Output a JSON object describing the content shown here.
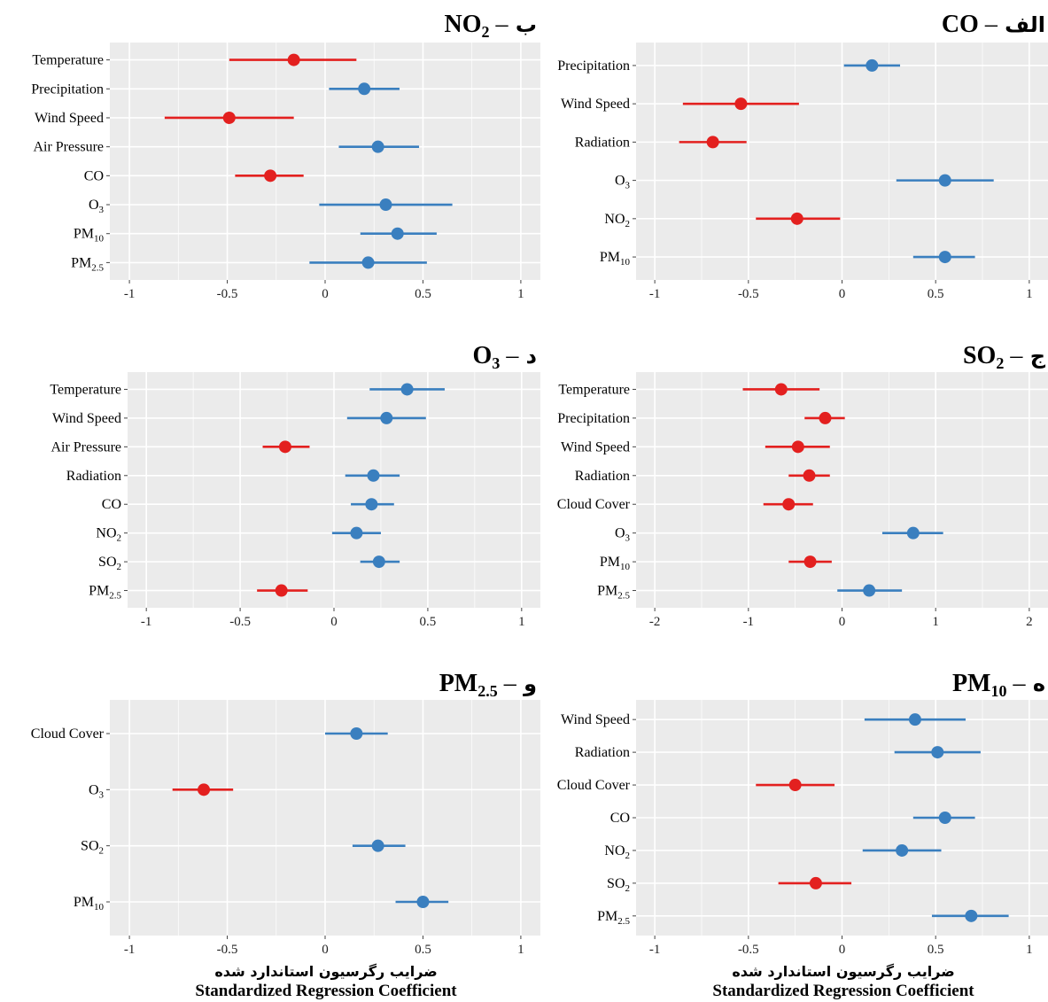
{
  "figure": {
    "xlabel_fa": "ضرایب رگرسیون استاندارد شده",
    "xlabel_en": "Standardized Regression Coefficient"
  },
  "colors": {
    "positive": "#3a7fbf",
    "negative": "#e3201f",
    "panel_bg": "#ebebeb",
    "grid": "#ffffff"
  },
  "chart_data": [
    {
      "id": "alef",
      "type": "scatter",
      "subtype": "coefficient-interval",
      "title_letter": "الف",
      "title_dash": "–",
      "title_base": "CO",
      "title_sub": "",
      "xlim": [
        -1.1,
        1.1
      ],
      "xticks": [
        "-1",
        "-0.5",
        "0",
        "0.5",
        "1"
      ],
      "xtick_values": [
        -1,
        -0.5,
        0,
        0.5,
        1
      ],
      "points": [
        {
          "label": "Precipitation",
          "sub": "",
          "estimate": 0.16,
          "low": 0.01,
          "high": 0.31,
          "sign": "positive"
        },
        {
          "label": "Wind Speed",
          "sub": "",
          "estimate": -0.54,
          "low": -0.85,
          "high": -0.23,
          "sign": "negative"
        },
        {
          "label": "Radiation",
          "sub": "",
          "estimate": -0.69,
          "low": -0.87,
          "high": -0.51,
          "sign": "negative"
        },
        {
          "label": "O",
          "sub": "3",
          "estimate": 0.55,
          "low": 0.29,
          "high": 0.81,
          "sign": "positive"
        },
        {
          "label": "NO",
          "sub": "2",
          "estimate": -0.24,
          "low": -0.46,
          "high": -0.01,
          "sign": "negative"
        },
        {
          "label": "PM",
          "sub": "10",
          "estimate": 0.55,
          "low": 0.38,
          "high": 0.71,
          "sign": "positive"
        }
      ]
    },
    {
      "id": "be",
      "type": "scatter",
      "subtype": "coefficient-interval",
      "title_letter": "ب",
      "title_dash": "–",
      "title_base": "NO",
      "title_sub": "2",
      "xlim": [
        -1.1,
        1.1
      ],
      "xticks": [
        "-1",
        "-0.5",
        "0",
        "0.5",
        "1"
      ],
      "xtick_values": [
        -1,
        -0.5,
        0,
        0.5,
        1
      ],
      "points": [
        {
          "label": "Temperature",
          "sub": "",
          "estimate": -0.16,
          "low": -0.49,
          "high": 0.16,
          "sign": "negative"
        },
        {
          "label": "Precipitation",
          "sub": "",
          "estimate": 0.2,
          "low": 0.02,
          "high": 0.38,
          "sign": "positive"
        },
        {
          "label": "Wind Speed",
          "sub": "",
          "estimate": -0.49,
          "low": -0.82,
          "high": -0.16,
          "sign": "negative"
        },
        {
          "label": "Air Pressure",
          "sub": "",
          "estimate": 0.27,
          "low": 0.07,
          "high": 0.48,
          "sign": "positive"
        },
        {
          "label": "CO",
          "sub": "",
          "estimate": -0.28,
          "low": -0.46,
          "high": -0.11,
          "sign": "negative"
        },
        {
          "label": "O",
          "sub": "3",
          "estimate": 0.31,
          "low": -0.03,
          "high": 0.65,
          "sign": "positive"
        },
        {
          "label": "PM",
          "sub": "10",
          "estimate": 0.37,
          "low": 0.18,
          "high": 0.57,
          "sign": "positive"
        },
        {
          "label": "PM",
          "sub": "2.5",
          "estimate": 0.22,
          "low": -0.08,
          "high": 0.52,
          "sign": "positive"
        }
      ]
    },
    {
      "id": "jim",
      "type": "scatter",
      "subtype": "coefficient-interval",
      "title_letter": "ج",
      "title_dash": "–",
      "title_base": "SO",
      "title_sub": "2",
      "xlim": [
        -2.2,
        2.2
      ],
      "xticks": [
        "-2",
        "-1",
        "0",
        "1",
        "2"
      ],
      "xtick_values": [
        -2,
        -1,
        0,
        1,
        2
      ],
      "points": [
        {
          "label": "Temperature",
          "sub": "",
          "estimate": -0.65,
          "low": -1.06,
          "high": -0.24,
          "sign": "negative"
        },
        {
          "label": "Precipitation",
          "sub": "",
          "estimate": -0.18,
          "low": -0.4,
          "high": 0.03,
          "sign": "negative"
        },
        {
          "label": "Wind Speed",
          "sub": "",
          "estimate": -0.47,
          "low": -0.82,
          "high": -0.13,
          "sign": "negative"
        },
        {
          "label": "Radiation",
          "sub": "",
          "estimate": -0.35,
          "low": -0.57,
          "high": -0.13,
          "sign": "negative"
        },
        {
          "label": "Cloud Cover",
          "sub": "",
          "estimate": -0.57,
          "low": -0.84,
          "high": -0.31,
          "sign": "negative"
        },
        {
          "label": "O",
          "sub": "3",
          "estimate": 0.76,
          "low": 0.43,
          "high": 1.08,
          "sign": "positive"
        },
        {
          "label": "PM",
          "sub": "10",
          "estimate": -0.34,
          "low": -0.57,
          "high": -0.11,
          "sign": "negative"
        },
        {
          "label": "PM",
          "sub": "2.5",
          "estimate": 0.29,
          "low": -0.05,
          "high": 0.64,
          "sign": "positive"
        }
      ]
    },
    {
      "id": "dal",
      "type": "scatter",
      "subtype": "coefficient-interval",
      "title_letter": "د",
      "title_dash": "–",
      "title_base": "O",
      "title_sub": "3",
      "xlim": [
        -1.1,
        1.1
      ],
      "xticks": [
        "-1",
        "-0.5",
        "0",
        "0.5",
        "1"
      ],
      "xtick_values": [
        -1,
        -0.5,
        0,
        0.5,
        1
      ],
      "points": [
        {
          "label": "Temperature",
          "sub": "",
          "estimate": 0.39,
          "low": 0.19,
          "high": 0.59,
          "sign": "positive"
        },
        {
          "label": "Wind Speed",
          "sub": "",
          "estimate": 0.28,
          "low": 0.07,
          "high": 0.49,
          "sign": "positive"
        },
        {
          "label": "Air Pressure",
          "sub": "",
          "estimate": -0.26,
          "low": -0.38,
          "high": -0.13,
          "sign": "negative"
        },
        {
          "label": "Radiation",
          "sub": "",
          "estimate": 0.21,
          "low": 0.06,
          "high": 0.35,
          "sign": "positive"
        },
        {
          "label": "CO",
          "sub": "",
          "estimate": 0.2,
          "low": 0.09,
          "high": 0.32,
          "sign": "positive"
        },
        {
          "label": "NO",
          "sub": "2",
          "estimate": 0.12,
          "low": -0.01,
          "high": 0.25,
          "sign": "positive"
        },
        {
          "label": "SO",
          "sub": "2",
          "estimate": 0.24,
          "low": 0.14,
          "high": 0.35,
          "sign": "positive"
        },
        {
          "label": "PM",
          "sub": "2.5",
          "estimate": -0.28,
          "low": -0.41,
          "high": -0.14,
          "sign": "negative"
        }
      ]
    },
    {
      "id": "he",
      "type": "scatter",
      "subtype": "coefficient-interval",
      "title_letter": "ه",
      "title_dash": "–",
      "title_base": "PM",
      "title_sub": "10",
      "xlim": [
        -1.1,
        1.1
      ],
      "xticks": [
        "-1",
        "-0.5",
        "0",
        "0.5",
        "1"
      ],
      "xtick_values": [
        -1,
        -0.5,
        0,
        0.5,
        1
      ],
      "points": [
        {
          "label": "Wind Speed",
          "sub": "",
          "estimate": 0.39,
          "low": 0.12,
          "high": 0.66,
          "sign": "positive"
        },
        {
          "label": "Radiation",
          "sub": "",
          "estimate": 0.51,
          "low": 0.28,
          "high": 0.74,
          "sign": "positive"
        },
        {
          "label": "Cloud Cover",
          "sub": "",
          "estimate": -0.25,
          "low": -0.46,
          "high": -0.04,
          "sign": "negative"
        },
        {
          "label": "CO",
          "sub": "",
          "estimate": 0.55,
          "low": 0.38,
          "high": 0.71,
          "sign": "positive"
        },
        {
          "label": "NO",
          "sub": "2",
          "estimate": 0.32,
          "low": 0.11,
          "high": 0.53,
          "sign": "positive"
        },
        {
          "label": "SO",
          "sub": "2",
          "estimate": -0.14,
          "low": -0.34,
          "high": 0.05,
          "sign": "negative"
        },
        {
          "label": "PM",
          "sub": "2.5",
          "estimate": 0.69,
          "low": 0.48,
          "high": 0.89,
          "sign": "positive"
        }
      ]
    },
    {
      "id": "vav",
      "type": "scatter",
      "subtype": "coefficient-interval",
      "title_letter": "و",
      "title_dash": "–",
      "title_base": "PM",
      "title_sub": "2.5",
      "xlim": [
        -1.1,
        1.1
      ],
      "xticks": [
        "-1",
        "-0.5",
        "0",
        "0.5",
        "1"
      ],
      "xtick_values": [
        -1,
        -0.5,
        0,
        0.5,
        1
      ],
      "points": [
        {
          "label": "Cloud Cover",
          "sub": "",
          "estimate": 0.16,
          "low": 0.0,
          "high": 0.32,
          "sign": "positive"
        },
        {
          "label": "O",
          "sub": "3",
          "estimate": -0.62,
          "low": -0.78,
          "high": -0.47,
          "sign": "negative"
        },
        {
          "label": "SO",
          "sub": "2",
          "estimate": 0.27,
          "low": 0.14,
          "high": 0.41,
          "sign": "positive"
        },
        {
          "label": "PM",
          "sub": "10",
          "estimate": 0.5,
          "low": 0.36,
          "high": 0.63,
          "sign": "positive"
        }
      ]
    }
  ]
}
